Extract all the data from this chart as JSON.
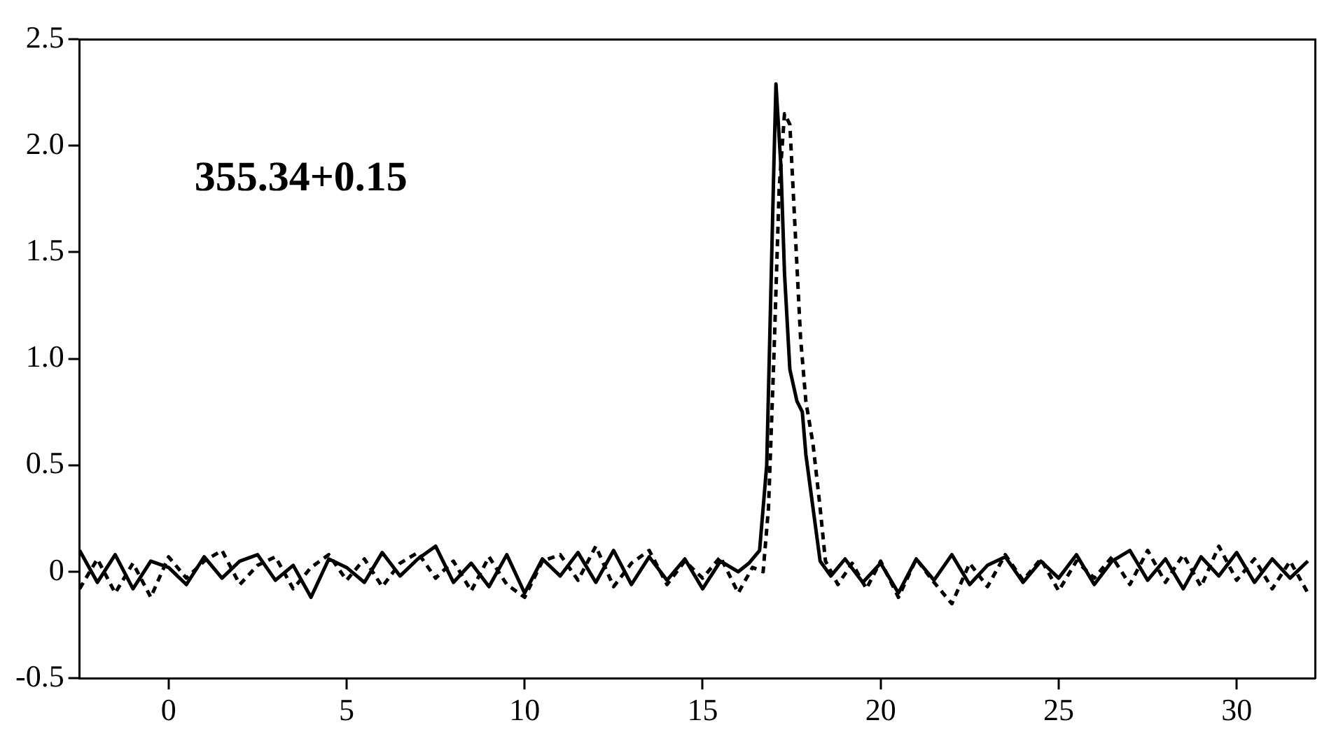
{
  "chart_data": {
    "type": "line",
    "annotations": [
      "355.34+0.15"
    ],
    "xlim": [
      -2.5,
      32.2
    ],
    "xticks": [
      0,
      5,
      10,
      15,
      20,
      25,
      30
    ],
    "ylim": [
      -0.5,
      2.5
    ],
    "yticks": [
      {
        "value": -0.5,
        "label": "-0.5"
      },
      {
        "value": 0,
        "label": "0"
      },
      {
        "value": 0.5,
        "label": "0.5"
      },
      {
        "value": 1,
        "label": "1.0"
      },
      {
        "value": 1.5,
        "label": "1.5"
      },
      {
        "value": 2,
        "label": "2.0"
      },
      {
        "value": 2.5,
        "label": "2.5"
      }
    ],
    "grid": false,
    "legend": false,
    "marker": "none",
    "series": [
      {
        "color": "#000000",
        "line_style": "solid",
        "x": [
          -2.5,
          -2,
          -1.5,
          -1,
          -0.5,
          0,
          0.5,
          1,
          1.5,
          2,
          2.5,
          3,
          3.5,
          4,
          4.5,
          5,
          5.5,
          6,
          6.5,
          7,
          7.5,
          8,
          8.5,
          9,
          9.5,
          10,
          10.5,
          11,
          11.5,
          12,
          12.5,
          13,
          13.5,
          14,
          14.5,
          15,
          15.5,
          16,
          16.3,
          16.6,
          16.8,
          16.9,
          17.0,
          17.06,
          17.2,
          17.3,
          17.45,
          17.65,
          17.8,
          17.9,
          18.1,
          18.3,
          18.6,
          19,
          19.5,
          20,
          20.5,
          21,
          21.5,
          22,
          22.5,
          23,
          23.5,
          24,
          24.5,
          25,
          25.5,
          26,
          26.5,
          27,
          27.5,
          28,
          28.5,
          29,
          29.5,
          30,
          30.5,
          31,
          31.5,
          32
        ],
        "values": [
          0.1,
          -0.05,
          0.08,
          -0.08,
          0.05,
          0.02,
          -0.06,
          0.07,
          -0.03,
          0.05,
          0.08,
          -0.04,
          0.03,
          -0.12,
          0.06,
          0.02,
          -0.05,
          0.09,
          -0.02,
          0.06,
          0.12,
          -0.05,
          0.04,
          -0.07,
          0.08,
          -0.1,
          0.06,
          -0.02,
          0.09,
          -0.05,
          0.1,
          -0.06,
          0.07,
          -0.04,
          0.06,
          -0.08,
          0.05,
          0.0,
          0.04,
          0.1,
          0.5,
          1.2,
          1.9,
          2.29,
          1.9,
          1.4,
          0.95,
          0.8,
          0.75,
          0.55,
          0.3,
          0.05,
          -0.02,
          0.06,
          -0.05,
          0.04,
          -0.1,
          0.06,
          -0.04,
          0.08,
          -0.06,
          0.03,
          0.07,
          -0.05,
          0.05,
          -0.03,
          0.08,
          -0.06,
          0.05,
          0.1,
          -0.04,
          0.06,
          -0.08,
          0.07,
          -0.02,
          0.09,
          -0.05,
          0.06,
          -0.03,
          0.05
        ]
      },
      {
        "color": "#000000",
        "line_style": "dashed",
        "x": [
          -2.5,
          -2,
          -1.5,
          -1,
          -0.5,
          0,
          0.5,
          1,
          1.5,
          2,
          2.5,
          3,
          3.5,
          4,
          4.5,
          5,
          5.5,
          6,
          6.5,
          7,
          7.5,
          8,
          8.5,
          9,
          9.5,
          10,
          10.5,
          11,
          11.5,
          12,
          12.5,
          13,
          13.5,
          14,
          14.5,
          15,
          15.5,
          16,
          16.4,
          16.7,
          16.85,
          17.0,
          17.15,
          17.3,
          17.45,
          17.6,
          17.75,
          17.9,
          18.1,
          18.3,
          18.45,
          18.8,
          19.2,
          19.6,
          20,
          20.5,
          21,
          21.5,
          22,
          22.5,
          23,
          23.5,
          24,
          24.5,
          25,
          25.5,
          26,
          26.5,
          27,
          27.5,
          28,
          28.5,
          29,
          29.5,
          30,
          30.5,
          31,
          31.5,
          32
        ],
        "values": [
          -0.08,
          0.06,
          -0.1,
          0.04,
          -0.12,
          0.07,
          -0.03,
          0.05,
          0.1,
          -0.06,
          0.03,
          0.07,
          -0.08,
          0.02,
          0.08,
          -0.04,
          0.06,
          -0.07,
          0.04,
          0.09,
          -0.03,
          0.05,
          -0.09,
          0.07,
          -0.06,
          -0.12,
          0.05,
          0.08,
          -0.04,
          0.12,
          -0.07,
          0.04,
          0.1,
          -0.06,
          0.05,
          -0.03,
          0.07,
          -0.1,
          0.02,
          0.0,
          0.3,
          1.0,
          1.8,
          2.15,
          2.1,
          1.6,
          1.1,
          0.8,
          0.6,
          0.3,
          0.05,
          -0.06,
          0.04,
          -0.08,
          0.05,
          -0.12,
          0.06,
          -0.05,
          -0.15,
          0.04,
          -0.07,
          0.08,
          -0.04,
          0.06,
          -0.09,
          0.05,
          -0.03,
          0.07,
          -0.06,
          0.1,
          -0.05,
          0.08,
          -0.07,
          0.12,
          -0.04,
          0.06,
          -0.08,
          0.05,
          -0.1
        ]
      }
    ]
  }
}
